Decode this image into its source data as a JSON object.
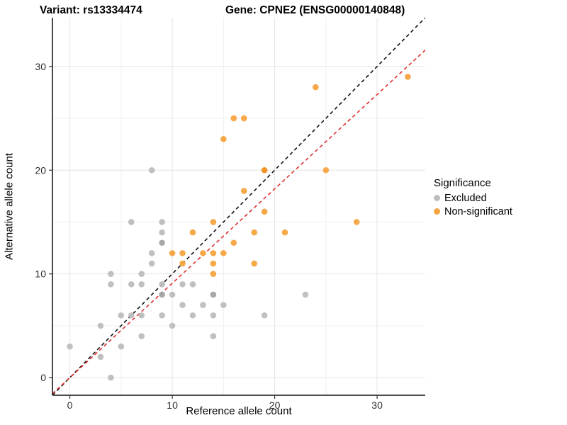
{
  "title": {
    "variant": "Variant: rs13334474",
    "gene": "Gene: CPNE2 (ENSG00000140848)"
  },
  "legend": {
    "title": "Significance",
    "items": [
      {
        "label": "Excluded",
        "color": "#BDBDBD"
      },
      {
        "label": "Non-significant",
        "color": "#F7A440"
      }
    ]
  },
  "chart_data": {
    "type": "scatter",
    "title": "Variant: rs13334474   Gene: CPNE2 (ENSG00000140848)",
    "xlabel": "Reference allele count",
    "ylabel": "Alternative allele count",
    "xlim": [
      -1.7,
      34.7
    ],
    "ylim": [
      -1.7,
      34.7
    ],
    "x_ticks": [
      0,
      10,
      20,
      30
    ],
    "y_ticks": [
      0,
      10,
      20,
      30
    ],
    "minor_ticks": [
      5,
      15,
      25
    ],
    "grid": true,
    "legend_position": "right",
    "series": [
      {
        "name": "Excluded",
        "color": "#BDBDBD",
        "overlap_color": "#A3A3A3",
        "points": [
          [
            0,
            3
          ],
          [
            3,
            2
          ],
          [
            3,
            5
          ],
          [
            4,
            0
          ],
          [
            4,
            9
          ],
          [
            4,
            10
          ],
          [
            5,
            3
          ],
          [
            5,
            6
          ],
          [
            6,
            6
          ],
          [
            6,
            9
          ],
          [
            6,
            15
          ],
          [
            7,
            4
          ],
          [
            7,
            6
          ],
          [
            7,
            9
          ],
          [
            7,
            10
          ],
          [
            8,
            11
          ],
          [
            8,
            12
          ],
          [
            8,
            20
          ],
          [
            9,
            6
          ],
          [
            9,
            8,
            2
          ],
          [
            9,
            9
          ],
          [
            9,
            13,
            2
          ],
          [
            9,
            14
          ],
          [
            9,
            15
          ],
          [
            10,
            5
          ],
          [
            10,
            8
          ],
          [
            11,
            7
          ],
          [
            11,
            9
          ],
          [
            12,
            6
          ],
          [
            12,
            9
          ],
          [
            13,
            7
          ],
          [
            14,
            4
          ],
          [
            14,
            6
          ],
          [
            14,
            8,
            2
          ],
          [
            15,
            7
          ],
          [
            19,
            6
          ],
          [
            23,
            8
          ]
        ]
      },
      {
        "name": "Non-significant",
        "color": "#F7A440",
        "overlap_color": "#F08E1A",
        "points": [
          [
            10,
            12
          ],
          [
            11,
            11
          ],
          [
            11,
            12
          ],
          [
            12,
            14
          ],
          [
            13,
            12
          ],
          [
            14,
            10
          ],
          [
            14,
            11
          ],
          [
            14,
            12
          ],
          [
            14,
            15
          ],
          [
            15,
            12
          ],
          [
            15,
            23
          ],
          [
            16,
            13
          ],
          [
            16,
            25
          ],
          [
            17,
            18
          ],
          [
            17,
            25
          ],
          [
            18,
            11
          ],
          [
            18,
            14
          ],
          [
            19,
            16
          ],
          [
            19,
            20,
            2
          ],
          [
            21,
            14
          ],
          [
            24,
            28
          ],
          [
            25,
            20
          ],
          [
            28,
            15
          ],
          [
            33,
            29
          ]
        ]
      }
    ],
    "reference_lines": [
      {
        "name": "identity-line",
        "slope": 1.0,
        "intercept": 0,
        "color": "#111111",
        "style": "dashed"
      },
      {
        "name": "ratio-line",
        "slope": 0.91,
        "intercept": 0,
        "color": "#DF2F2F",
        "style": "dashed"
      }
    ]
  }
}
